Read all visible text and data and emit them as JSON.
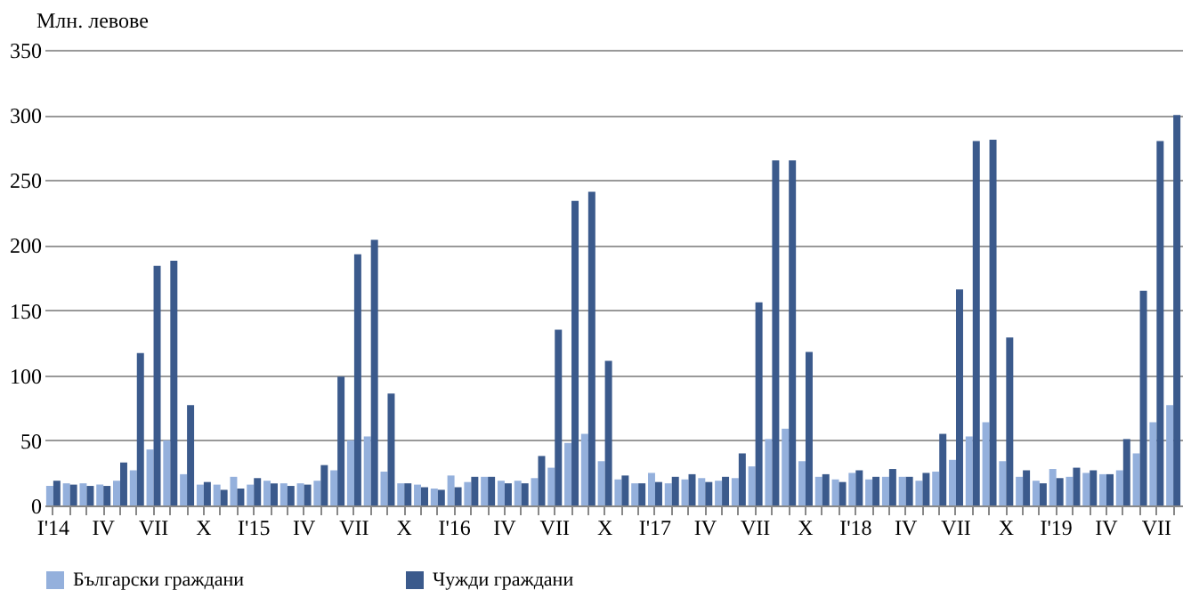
{
  "chart_data": {
    "type": "bar",
    "ylabel": "Млн. левове",
    "categories": [
      "I'14",
      null,
      null,
      "IV",
      null,
      null,
      "VII",
      null,
      null,
      "X",
      null,
      null,
      "I'15",
      null,
      null,
      "IV",
      null,
      null,
      "VII",
      null,
      null,
      "X",
      null,
      null,
      "I'16",
      null,
      null,
      "IV",
      null,
      null,
      "VII",
      null,
      null,
      "X",
      null,
      null,
      "I'17",
      null,
      null,
      "IV",
      null,
      null,
      "VII",
      null,
      null,
      "X",
      null,
      null,
      "I'18",
      null,
      null,
      "IV",
      null,
      null,
      "VII",
      null,
      null,
      "X",
      null,
      null,
      "I'19",
      null,
      null,
      "IV",
      null,
      null,
      "VII",
      null
    ],
    "series": [
      {
        "name": "Български граждани",
        "color": "#94b0dc",
        "values": [
          15,
          17,
          17,
          16,
          19,
          27,
          43,
          50,
          24,
          16,
          16,
          22,
          16,
          19,
          17,
          17,
          19,
          27,
          50,
          53,
          26,
          17,
          16,
          13,
          23,
          18,
          22,
          19,
          19,
          21,
          29,
          48,
          55,
          34,
          20,
          17,
          25,
          17,
          20,
          21,
          19,
          21,
          30,
          51,
          59,
          34,
          22,
          20,
          25,
          20,
          22,
          22,
          19,
          26,
          35,
          53,
          64,
          34,
          22,
          19,
          28,
          22,
          25,
          24,
          27,
          40,
          64,
          77
        ]
      },
      {
        "name": "Чужди граждани",
        "color": "#3b5a8c",
        "values": [
          19,
          16,
          15,
          15,
          33,
          117,
          184,
          188,
          77,
          18,
          12,
          13,
          21,
          17,
          15,
          16,
          31,
          99,
          193,
          204,
          86,
          17,
          14,
          12,
          14,
          22,
          22,
          17,
          17,
          38,
          135,
          234,
          241,
          111,
          23,
          17,
          18,
          22,
          24,
          18,
          22,
          40,
          156,
          265,
          265,
          118,
          24,
          18,
          27,
          22,
          28,
          22,
          25,
          55,
          166,
          280,
          281,
          129,
          27,
          17,
          21,
          29,
          27,
          24,
          51,
          165,
          280,
          300
        ]
      }
    ],
    "ylim": [
      0,
      350
    ],
    "yticks": [
      0,
      50,
      100,
      150,
      200,
      250,
      300,
      350
    ],
    "grid": "y",
    "legend": "bottom"
  }
}
